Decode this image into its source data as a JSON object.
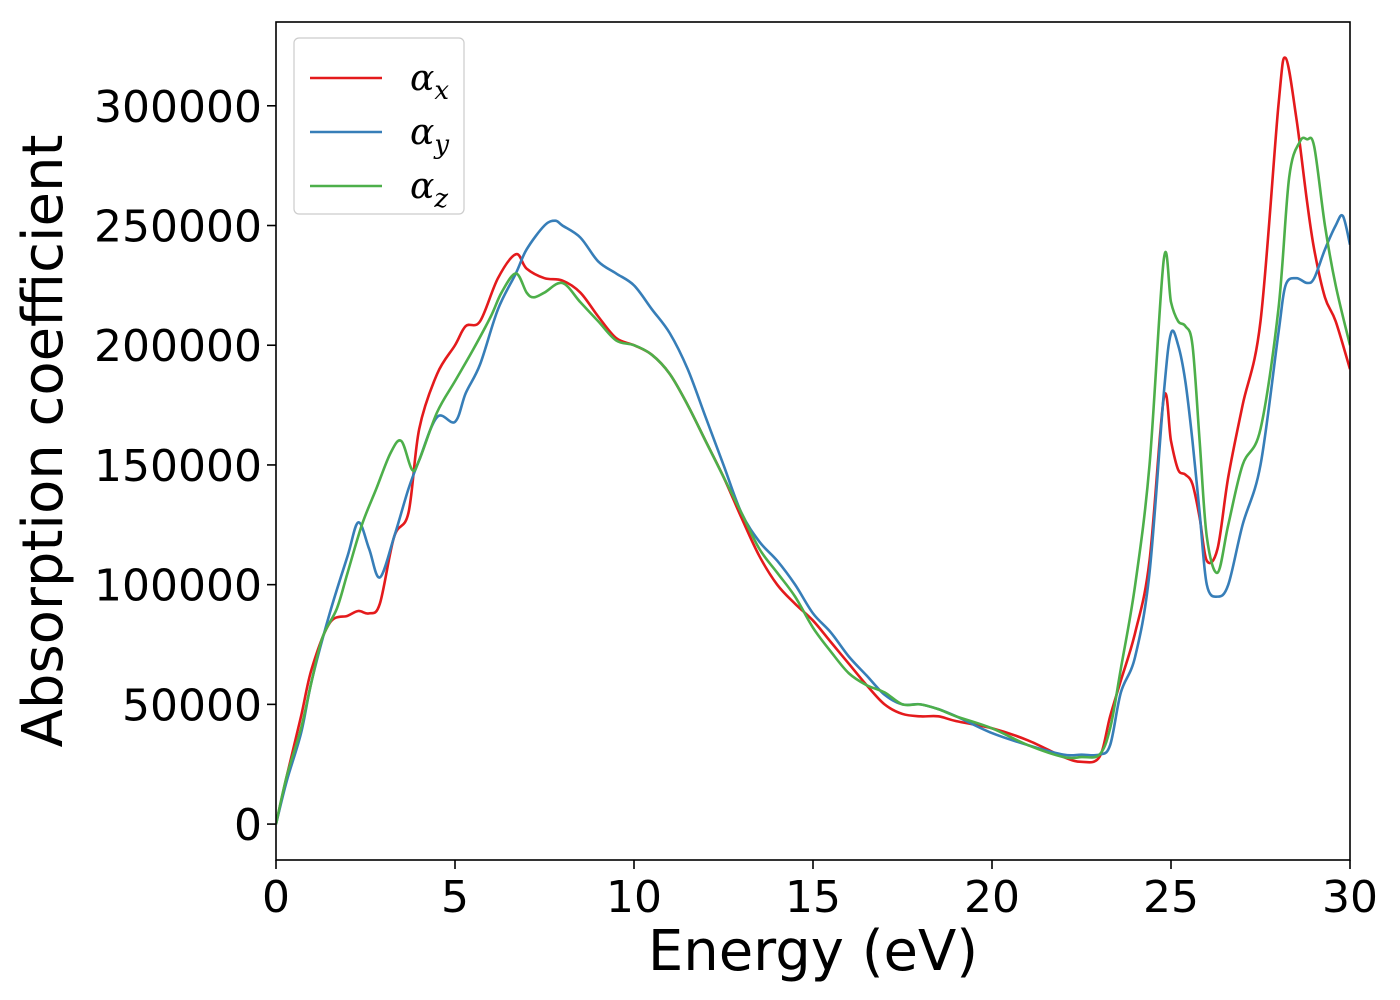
{
  "chart_data": {
    "type": "line",
    "xlabel": "Energy (eV)",
    "ylabel": "Absorption coefficient",
    "xlim": [
      0,
      30
    ],
    "ylim": [
      -15000,
      335000
    ],
    "xticks": [
      0,
      5,
      10,
      15,
      20,
      25,
      30
    ],
    "yticks": [
      0,
      50000,
      100000,
      150000,
      200000,
      250000,
      300000
    ],
    "xtick_labels": [
      "0",
      "5",
      "10",
      "15",
      "20",
      "25",
      "30"
    ],
    "ytick_labels": [
      "0",
      "50000",
      "100000",
      "150000",
      "200000",
      "250000",
      "300000"
    ],
    "grid": false,
    "legend_position": "top-left",
    "series": [
      {
        "name": "α",
        "subscript": "x",
        "color": "#e41a1c",
        "x": [
          0,
          0.3,
          0.7,
          1.0,
          1.5,
          2.0,
          2.3,
          2.6,
          2.9,
          3.3,
          3.7,
          4.0,
          4.5,
          5.0,
          5.3,
          5.7,
          6.2,
          6.7,
          7.0,
          7.5,
          8.0,
          8.5,
          9.0,
          9.5,
          10.0,
          10.5,
          11.0,
          11.5,
          12.0,
          12.5,
          13.0,
          13.5,
          14.0,
          14.5,
          15.0,
          15.5,
          16.0,
          16.5,
          17.0,
          17.5,
          18.0,
          18.5,
          19.0,
          20.0,
          21.0,
          22.0,
          22.5,
          23.0,
          23.3,
          23.6,
          24.0,
          24.4,
          24.8,
          25.0,
          25.2,
          25.4,
          25.6,
          25.8,
          26.0,
          26.3,
          26.6,
          27.0,
          27.5,
          28.0,
          28.2,
          28.5,
          28.8,
          29.0,
          29.3,
          29.6,
          30.0
        ],
        "y": [
          0,
          20000,
          45000,
          65000,
          84000,
          87000,
          89000,
          88000,
          92000,
          120000,
          130000,
          165000,
          188000,
          200000,
          208000,
          210000,
          228000,
          238000,
          232000,
          228000,
          227000,
          222000,
          212000,
          203000,
          200000,
          196000,
          188000,
          175000,
          160000,
          145000,
          128000,
          112000,
          100000,
          92000,
          85000,
          76000,
          67000,
          58000,
          50000,
          46000,
          45000,
          45000,
          43000,
          40000,
          35000,
          28000,
          26000,
          28000,
          45000,
          60000,
          80000,
          110000,
          178000,
          160000,
          148000,
          146000,
          142000,
          128000,
          110000,
          115000,
          145000,
          175000,
          210000,
          300000,
          320000,
          295000,
          260000,
          240000,
          220000,
          210000,
          190000
        ]
      },
      {
        "name": "α",
        "subscript": "y",
        "color": "#377eb8",
        "x": [
          0,
          0.3,
          0.7,
          1.0,
          1.5,
          2.0,
          2.3,
          2.6,
          2.9,
          3.3,
          3.7,
          4.0,
          4.5,
          5.0,
          5.3,
          5.7,
          6.2,
          6.7,
          7.0,
          7.5,
          7.8,
          8.0,
          8.5,
          9.0,
          9.5,
          10.0,
          10.5,
          11.0,
          11.5,
          12.0,
          12.5,
          13.0,
          13.5,
          14.0,
          14.5,
          15.0,
          15.5,
          16.0,
          16.5,
          17.0,
          17.5,
          18.0,
          18.5,
          19.0,
          20.0,
          21.0,
          22.0,
          22.5,
          23.0,
          23.3,
          23.6,
          24.0,
          24.4,
          24.8,
          25.0,
          25.2,
          25.4,
          25.6,
          25.8,
          26.0,
          26.3,
          26.6,
          27.0,
          27.5,
          28.0,
          28.2,
          28.5,
          28.8,
          29.0,
          29.3,
          29.6,
          29.8,
          30.0
        ],
        "y": [
          0,
          18000,
          38000,
          60000,
          88000,
          112000,
          126000,
          115000,
          103000,
          120000,
          140000,
          152000,
          170000,
          168000,
          180000,
          192000,
          215000,
          230000,
          240000,
          250000,
          252000,
          250000,
          245000,
          235000,
          230000,
          225000,
          215000,
          205000,
          190000,
          170000,
          150000,
          130000,
          118000,
          110000,
          100000,
          88000,
          80000,
          70000,
          62000,
          54000,
          50000,
          50000,
          48000,
          45000,
          38000,
          33000,
          29000,
          29000,
          29000,
          33000,
          55000,
          70000,
          105000,
          180000,
          205000,
          200000,
          185000,
          160000,
          130000,
          100000,
          95000,
          100000,
          125000,
          150000,
          205000,
          225000,
          228000,
          226000,
          228000,
          240000,
          250000,
          254000,
          242000
        ]
      },
      {
        "name": "α",
        "subscript": "z",
        "color": "#4daf4a",
        "x": [
          0,
          0.3,
          0.7,
          1.0,
          1.3,
          1.7,
          2.0,
          2.4,
          2.8,
          3.2,
          3.5,
          3.8,
          4.0,
          4.5,
          5.0,
          5.5,
          6.0,
          6.3,
          6.7,
          7.0,
          7.2,
          7.5,
          8.0,
          8.5,
          9.0,
          9.5,
          10.0,
          10.5,
          11.0,
          11.5,
          12.0,
          12.5,
          13.0,
          13.5,
          14.0,
          14.5,
          15.0,
          15.5,
          16.0,
          16.5,
          17.0,
          17.5,
          18.0,
          18.5,
          19.0,
          20.0,
          21.0,
          22.0,
          22.5,
          23.0,
          23.3,
          23.6,
          24.0,
          24.4,
          24.8,
          25.0,
          25.2,
          25.4,
          25.6,
          25.8,
          26.0,
          26.3,
          26.6,
          27.0,
          27.5,
          28.0,
          28.3,
          28.6,
          28.8,
          29.0,
          29.3,
          29.6,
          30.0
        ],
        "y": [
          0,
          20000,
          40000,
          60000,
          78000,
          90000,
          105000,
          125000,
          140000,
          155000,
          160000,
          148000,
          152000,
          172000,
          185000,
          198000,
          212000,
          222000,
          230000,
          222000,
          220000,
          222000,
          226000,
          218000,
          210000,
          202000,
          200000,
          196000,
          188000,
          175000,
          160000,
          145000,
          130000,
          115000,
          105000,
          95000,
          82000,
          72000,
          63000,
          58000,
          55000,
          50000,
          50000,
          48000,
          45000,
          40000,
          33000,
          28000,
          28000,
          29000,
          40000,
          65000,
          100000,
          150000,
          236000,
          218000,
          210000,
          208000,
          200000,
          160000,
          120000,
          105000,
          125000,
          150000,
          165000,
          215000,
          270000,
          285000,
          286000,
          283000,
          250000,
          225000,
          200000
        ]
      }
    ]
  }
}
